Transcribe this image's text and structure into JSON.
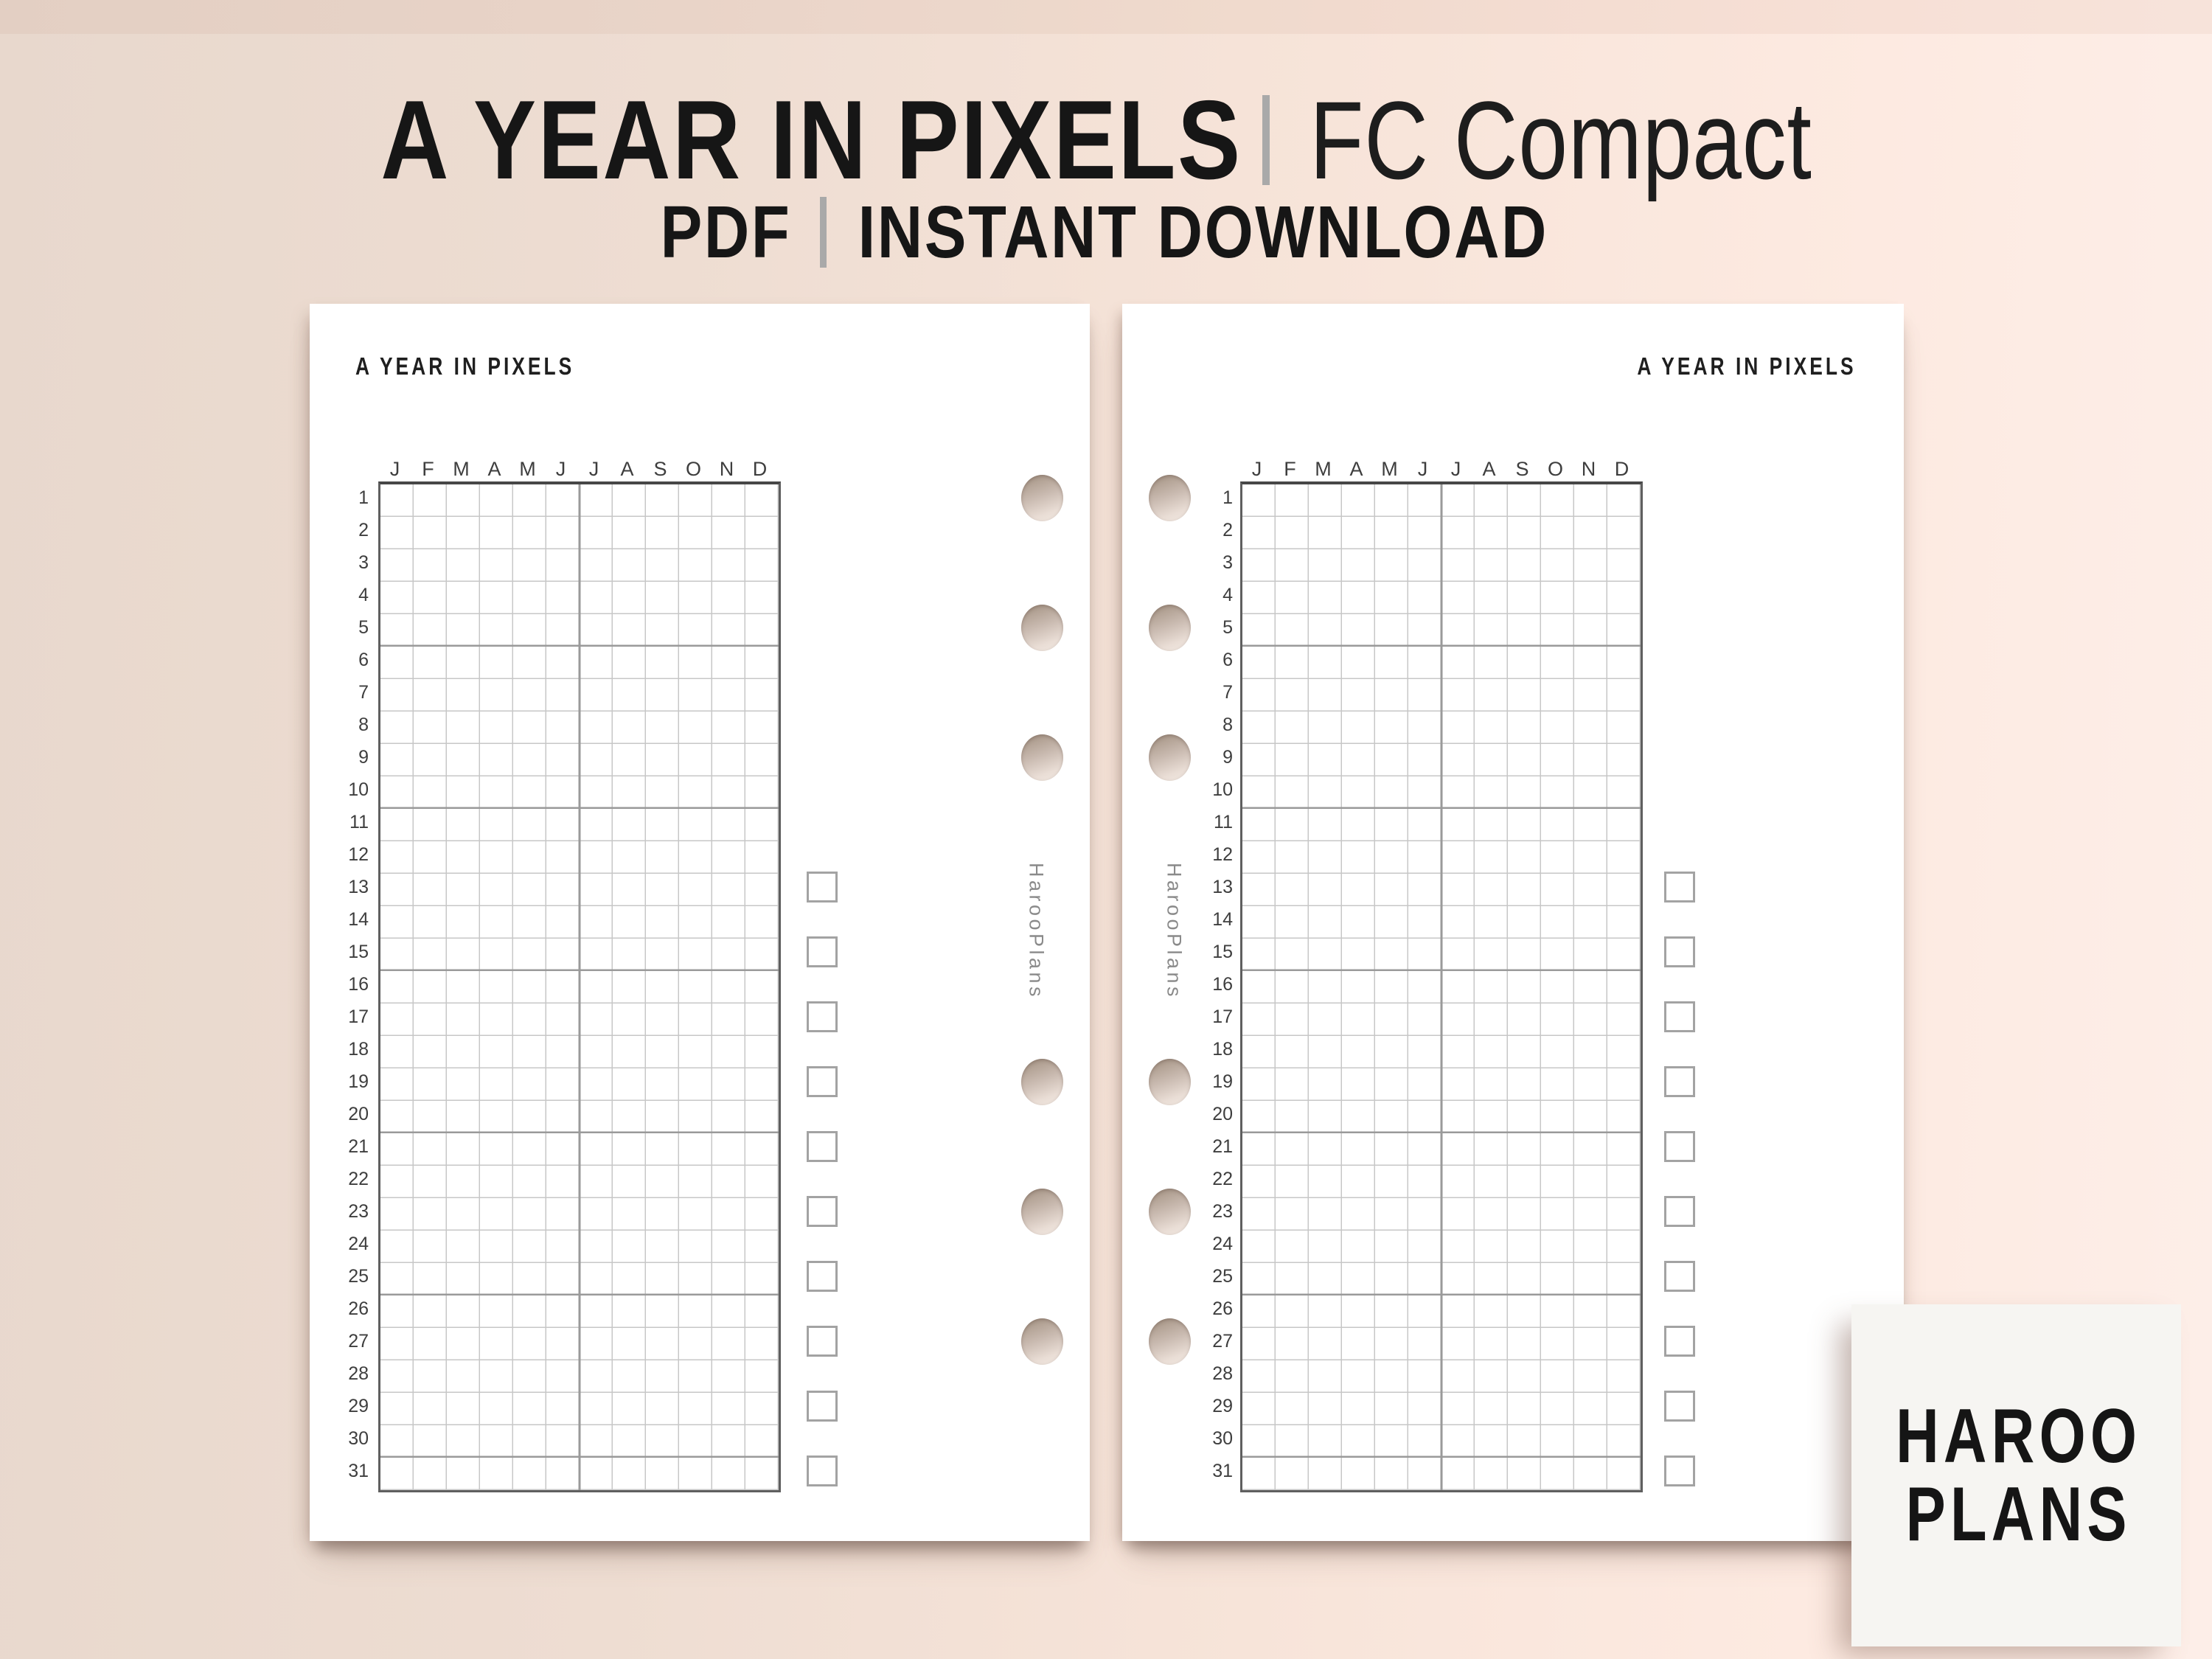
{
  "header": {
    "title": "A YEAR IN PIXELS",
    "variant": "FC Compact",
    "format": "PDF",
    "delivery": "INSTANT DOWNLOAD"
  },
  "pages": [
    {
      "side": "left",
      "title": "A YEAR IN PIXELS",
      "watermark": "HarooPlans"
    },
    {
      "side": "right",
      "title": "A YEAR IN PIXELS",
      "watermark": "HarooPlans"
    }
  ],
  "grid": {
    "months": [
      "J",
      "F",
      "M",
      "A",
      "M",
      "J",
      "J",
      "A",
      "S",
      "O",
      "N",
      "D"
    ],
    "days": [
      1,
      2,
      3,
      4,
      5,
      6,
      7,
      8,
      9,
      10,
      11,
      12,
      13,
      14,
      15,
      16,
      17,
      18,
      19,
      20,
      21,
      22,
      23,
      24,
      25,
      26,
      27,
      28,
      29,
      30,
      31
    ],
    "checkbox_rows": [
      13,
      15,
      17,
      19,
      21,
      23,
      25,
      27,
      29,
      31
    ],
    "punch_hole_rows": [
      1,
      5,
      9,
      19,
      23,
      27
    ],
    "line_color": "#c7c7c7",
    "heavy_line_color": "#9a9a9a",
    "border_color": "#5f5f5f"
  },
  "card": {
    "line1": "HAROO",
    "line2": "PLANS",
    "background": "#f6f5f2"
  },
  "colors": {
    "background_left": "#e8d8cd",
    "background_right": "#fdeee8",
    "page": "#ffffff",
    "title_text": "#161616",
    "separator": "#a9a9a9",
    "watermark": "#8a8a8a",
    "hole_dark": "#a89788",
    "hole_light": "#f2e9e2"
  }
}
